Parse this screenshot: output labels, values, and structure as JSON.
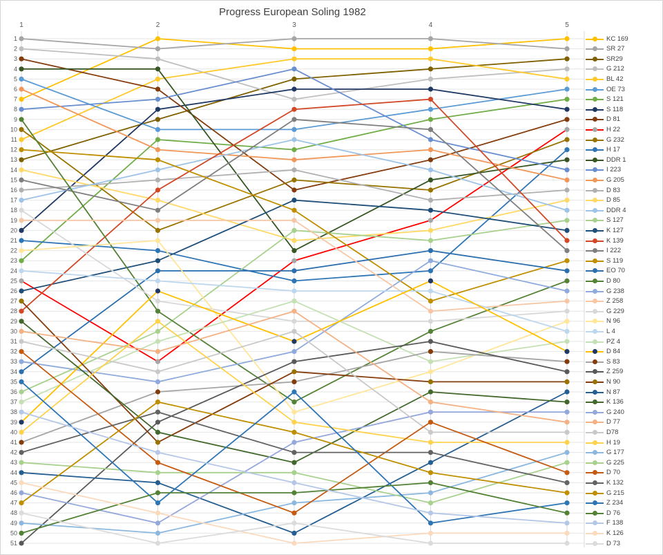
{
  "chart_data": {
    "type": "line",
    "subtype": "bump-rank-chart",
    "title": "Progress European Soling 1982",
    "x_labels": [
      "1",
      "2",
      "3",
      "4",
      "5"
    ],
    "y_axis": {
      "min": 1,
      "max": 51,
      "tick_step": 1,
      "direction": "rank-descending"
    },
    "grid": "on",
    "legend_position": "right",
    "axis_label_color": "#595959",
    "grid_color": "#e6e6e6",
    "column_grid_color": "#d9d9d9",
    "series": [
      {
        "name": "KC 169",
        "color": "#FFC000",
        "ranks": [
          7,
          1,
          2,
          2,
          1
        ]
      },
      {
        "name": "SR 27",
        "color": "#A5A5A5",
        "ranks": [
          1,
          2,
          1,
          1,
          2
        ]
      },
      {
        "name": "SR29",
        "color": "#7F6000",
        "ranks": [
          13,
          9,
          5,
          4,
          3
        ]
      },
      {
        "name": "G 212",
        "color": "#BFBFBF",
        "ranks": [
          2,
          3,
          7,
          5,
          4
        ]
      },
      {
        "name": "BL 42",
        "color": "#FFC92C",
        "ranks": [
          11,
          5,
          3,
          3,
          5
        ]
      },
      {
        "name": "OE 73",
        "color": "#5B9BD5",
        "ranks": [
          5,
          10,
          10,
          8,
          6
        ]
      },
      {
        "name": "S 121",
        "color": "#70AD47",
        "ranks": [
          23,
          11,
          12,
          9,
          7
        ]
      },
      {
        "name": "S 118",
        "color": "#203864",
        "ranks": [
          20,
          8,
          6,
          6,
          8
        ]
      },
      {
        "name": "D 81",
        "color": "#843C0C",
        "ranks": [
          3,
          6,
          16,
          13,
          9
        ]
      },
      {
        "name": "H 22",
        "color": "#FF0000",
        "marker": "#A6A6A6",
        "ranks": [
          25,
          33,
          23,
          19,
          10
        ]
      },
      {
        "name": "G 232",
        "color": "#997300",
        "ranks": [
          10,
          20,
          15,
          16,
          11
        ]
      },
      {
        "name": "H 17",
        "color": "#2E75B6",
        "ranks": [
          21,
          22,
          25,
          24,
          12
        ]
      },
      {
        "name": "DDR 1",
        "color": "#375623",
        "ranks": [
          4,
          4,
          22,
          15,
          13
        ]
      },
      {
        "name": "I 223",
        "color": "#698ED0",
        "ranks": [
          8,
          7,
          4,
          11,
          14
        ]
      },
      {
        "name": "G 205",
        "color": "#F1975A",
        "ranks": [
          6,
          12,
          13,
          12,
          15
        ]
      },
      {
        "name": "D 83",
        "color": "#B0B0B0",
        "ranks": [
          16,
          15,
          14,
          17,
          16
        ]
      },
      {
        "name": "D 85",
        "color": "#FFD966",
        "ranks": [
          14,
          17,
          21,
          20,
          17
        ]
      },
      {
        "name": "DDR 4",
        "color": "#9DC3E6",
        "ranks": [
          17,
          14,
          11,
          14,
          18
        ]
      },
      {
        "name": "S 127",
        "color": "#A9D18E",
        "ranks": [
          36,
          30,
          20,
          21,
          19
        ]
      },
      {
        "name": "K 127",
        "color": "#1F4E79",
        "ranks": [
          26,
          23,
          17,
          18,
          20
        ]
      },
      {
        "name": "K 139",
        "color": "#D24726",
        "ranks": [
          28,
          16,
          8,
          7,
          21
        ]
      },
      {
        "name": "I 222",
        "color": "#7F7F7F",
        "ranks": [
          15,
          18,
          9,
          10,
          22
        ]
      },
      {
        "name": "S 119",
        "color": "#BF8F00",
        "ranks": [
          12,
          13,
          18,
          27,
          23
        ]
      },
      {
        "name": "EO 70",
        "color": "#2C6FAF",
        "ranks": [
          34,
          24,
          24,
          22,
          24
        ]
      },
      {
        "name": "D 80",
        "color": "#548235",
        "ranks": [
          9,
          28,
          37,
          30,
          25
        ]
      },
      {
        "name": "G 238",
        "color": "#8FAADC",
        "ranks": [
          33,
          35,
          32,
          23,
          26
        ]
      },
      {
        "name": "Z 258",
        "color": "#F6C6A5",
        "ranks": [
          19,
          19,
          19,
          28,
          27
        ]
      },
      {
        "name": "G 229",
        "color": "#D8D8D8",
        "ranks": [
          18,
          27,
          29,
          29,
          28
        ]
      },
      {
        "name": "N 96",
        "color": "#FFE699",
        "ranks": [
          22,
          21,
          38,
          34,
          29
        ]
      },
      {
        "name": "L 4",
        "color": "#BDD7EE",
        "ranks": [
          24,
          25,
          26,
          26,
          30
        ]
      },
      {
        "name": "PZ 4",
        "color": "#C5E0B4",
        "ranks": [
          37,
          31,
          27,
          33,
          31
        ]
      },
      {
        "name": "D 84",
        "color": "#FFC000",
        "marker": "#1F3864",
        "ranks": [
          39,
          26,
          31,
          25,
          32
        ]
      },
      {
        "name": "S 83",
        "color": "#A5A5A5",
        "marker": "#843C0C",
        "ranks": [
          41,
          36,
          35,
          32,
          33
        ]
      },
      {
        "name": "Z 259",
        "color": "#595959",
        "ranks": [
          51,
          39,
          33,
          31,
          34
        ]
      },
      {
        "name": "N 90",
        "color": "#843C0C",
        "marker": "#997300",
        "ranks": [
          27,
          41,
          34,
          35,
          35
        ]
      },
      {
        "name": "N 87",
        "color": "#255E91",
        "ranks": [
          44,
          45,
          50,
          43,
          36
        ]
      },
      {
        "name": "K 136",
        "color": "#43682B",
        "ranks": [
          29,
          40,
          43,
          36,
          37
        ]
      },
      {
        "name": "G 240",
        "color": "#95A8DC",
        "ranks": [
          46,
          49,
          41,
          38,
          38
        ]
      },
      {
        "name": "D 77",
        "color": "#F4B183",
        "ranks": [
          30,
          32,
          28,
          37,
          39
        ]
      },
      {
        "name": "D78",
        "color": "#C9C9C9",
        "ranks": [
          31,
          34,
          30,
          40,
          40
        ]
      },
      {
        "name": "H 19",
        "color": "#FFD24D",
        "ranks": [
          40,
          29,
          39,
          41,
          41
        ]
      },
      {
        "name": "G 177",
        "color": "#8CB8E0",
        "ranks": [
          49,
          50,
          47,
          46,
          42
        ]
      },
      {
        "name": "G 225",
        "color": "#A9D18E",
        "ranks": [
          43,
          44,
          44,
          47,
          43
        ]
      },
      {
        "name": "D 70",
        "color": "#C55A11",
        "ranks": [
          32,
          43,
          48,
          39,
          44
        ]
      },
      {
        "name": "K 132",
        "color": "#636363",
        "ranks": [
          42,
          38,
          42,
          42,
          45
        ]
      },
      {
        "name": "G 215",
        "color": "#BF8F00",
        "ranks": [
          47,
          37,
          40,
          44,
          46
        ]
      },
      {
        "name": "Z 234",
        "color": "#2E75B6",
        "ranks": [
          35,
          47,
          36,
          49,
          47
        ]
      },
      {
        "name": "D 76",
        "color": "#538135",
        "ranks": [
          50,
          46,
          46,
          45,
          48
        ]
      },
      {
        "name": "F 138",
        "color": "#B4C7E7",
        "ranks": [
          38,
          42,
          45,
          48,
          49
        ]
      },
      {
        "name": "K 126",
        "color": "#FAD9BD",
        "ranks": [
          45,
          48,
          51,
          50,
          50
        ]
      },
      {
        "name": "D 73",
        "color": "#DBDBDB",
        "ranks": [
          48,
          51,
          49,
          51,
          51
        ]
      }
    ]
  }
}
